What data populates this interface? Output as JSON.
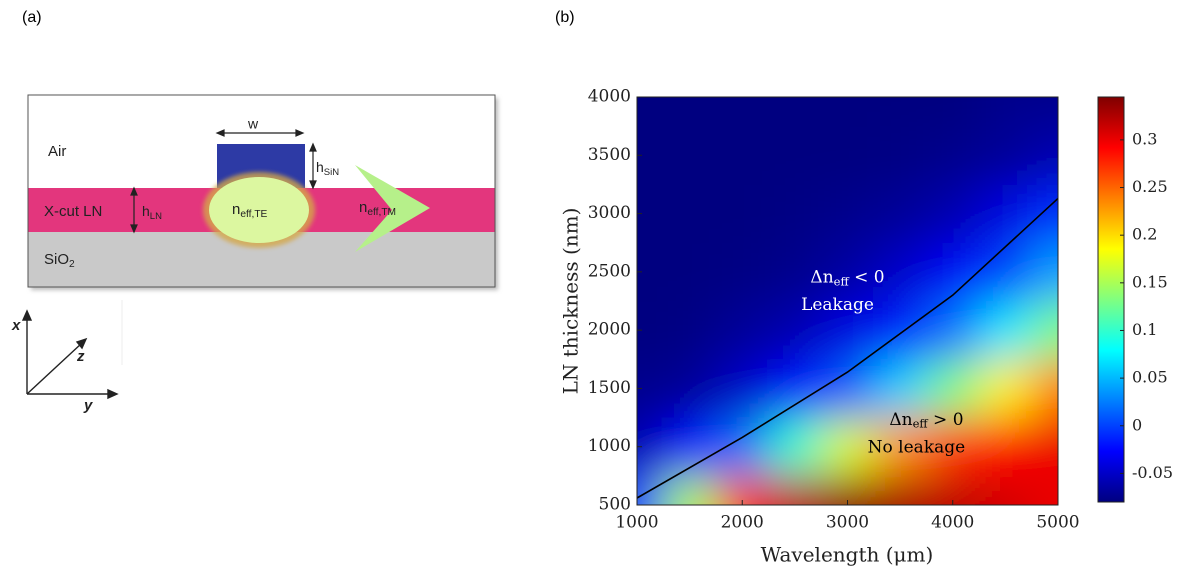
{
  "panel_labels": [
    "(a)",
    "(b)"
  ],
  "schematic": {
    "regions": [
      "Air",
      "X-cut LN",
      {
        "base": "SiO",
        "sub": "2"
      }
    ],
    "width_label": "w",
    "h_sin": {
      "base": "h",
      "sub": "SiN"
    },
    "h_ln": {
      "base": "h",
      "sub": "LN"
    },
    "mode_te": {
      "base": "n",
      "sub": "eff,TE"
    },
    "mode_tm": {
      "base": "n",
      "sub": "eff,TM"
    },
    "axes": [
      "x",
      "y",
      "z"
    ]
  },
  "chart_data": {
    "type": "heatmap",
    "x_label": "Wavelength (μm)",
    "y_label": "LN thickness (nm)",
    "x": [
      1000,
      1500,
      2000,
      2500,
      3000,
      3500,
      4000,
      4500,
      5000
    ],
    "y": [
      500,
      1000,
      1500,
      2000,
      2500,
      3000,
      3500,
      4000
    ],
    "z": [
      [
        0.0,
        0.15,
        0.27,
        0.32,
        0.34,
        0.33,
        0.32,
        0.31,
        0.3
      ],
      [
        -0.06,
        -0.02,
        0.02,
        0.1,
        0.17,
        0.23,
        0.27,
        0.29,
        0.3
      ],
      [
        -0.075,
        -0.07,
        -0.05,
        -0.02,
        0.01,
        0.06,
        0.13,
        0.19,
        0.24
      ],
      [
        -0.08,
        -0.078,
        -0.07,
        -0.06,
        -0.04,
        -0.015,
        0.02,
        0.07,
        0.13
      ],
      [
        -0.08,
        -0.08,
        -0.078,
        -0.075,
        -0.065,
        -0.05,
        -0.03,
        0.0,
        0.04
      ],
      [
        -0.08,
        -0.08,
        -0.08,
        -0.078,
        -0.075,
        -0.07,
        -0.06,
        -0.04,
        -0.01
      ],
      [
        -0.08,
        -0.08,
        -0.08,
        -0.08,
        -0.08,
        -0.078,
        -0.075,
        -0.07,
        -0.06
      ],
      [
        -0.08,
        -0.08,
        -0.08,
        -0.08,
        -0.08,
        -0.08,
        -0.08,
        -0.075,
        -0.075
      ]
    ],
    "zlim": [
      -0.08,
      0.345
    ],
    "colormap": "jet",
    "colorbar_ticks": [
      -0.05,
      0,
      0.05,
      0.1,
      0.15,
      0.2,
      0.25,
      0.3
    ],
    "boundary": {
      "x": [
        1000,
        2000,
        3000,
        4000,
        5000
      ],
      "y": [
        560,
        1080,
        1640,
        2300,
        3130
      ],
      "color": "#000000"
    },
    "xlim": [
      1000,
      5000
    ],
    "ylim": [
      500,
      4000
    ],
    "xticks": [
      1000,
      2000,
      3000,
      4000,
      5000
    ],
    "yticks": [
      500,
      1000,
      1500,
      2000,
      2500,
      3000,
      3500,
      4000
    ],
    "annotations": [
      {
        "base": "Δn",
        "sub": "eff",
        "tail": " < 0",
        "line2": "Leakage",
        "x": 3000,
        "y": 2450,
        "color": "#ffffff"
      },
      {
        "base": "Δn",
        "sub": "eff",
        "tail": " > 0",
        "line2": "No leakage",
        "x": 3750,
        "y": 1230,
        "color": "#000000"
      }
    ]
  }
}
